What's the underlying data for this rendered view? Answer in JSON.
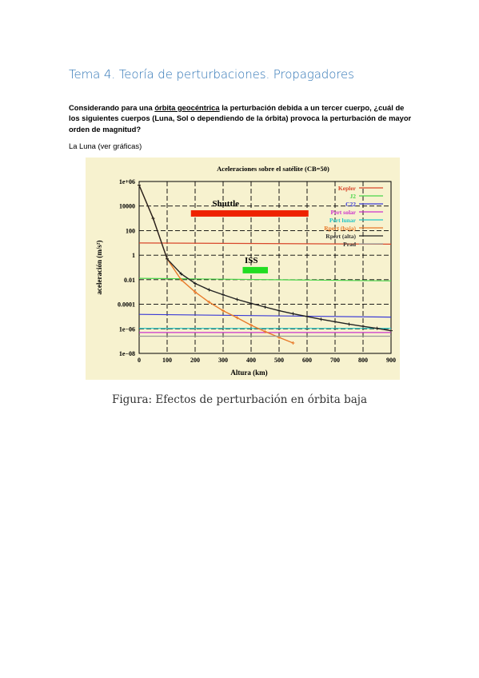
{
  "doc": {
    "title": "Tema 4. Teoría de perturbaciones. Propagadores",
    "question": {
      "before": "Considerando para una ",
      "underlined": "órbita geocéntrica",
      "after": " la perturbación debida a un tercer cuerpo, ¿cuál de los siguientes cuerpos (Luna, Sol o dependiendo de la órbita) provoca la perturbación de mayor orden de magnitud?"
    },
    "answer": "La Luna (ver gráficas)",
    "caption": "Figura: Efectos de perturbación en órbita baja"
  },
  "chart_data": {
    "type": "line",
    "title": "Aceleraciones sobre el satélite (CB=50)",
    "xlabel": "Altura (km)",
    "ylabel": "aceleración (m/s²)",
    "xlim": [
      0,
      900
    ],
    "ylim": [
      1e-08,
      1000000.0
    ],
    "yscale": "log",
    "grid": true,
    "legend_position": "top-right",
    "background": "#f7f2cf",
    "x_ticks": [
      "0",
      "100",
      "200",
      "300",
      "400",
      "500",
      "600",
      "700",
      "800",
      "900"
    ],
    "y_ticks": [
      "1e+06",
      "10000",
      "100",
      "1",
      "0.01",
      "0.0001",
      "1e−06",
      "1e−08"
    ],
    "series": [
      {
        "name": "Kepler",
        "color": "#d8472b",
        "x": [
          0,
          900
        ],
        "y": [
          9.8,
          7.9
        ]
      },
      {
        "name": "J2",
        "color": "#49d649",
        "x": [
          0,
          900
        ],
        "y": [
          0.013,
          0.008
        ]
      },
      {
        "name": "C22",
        "color": "#3a3ad6",
        "x": [
          0,
          900
        ],
        "y": [
          1.5e-05,
          9e-06
        ]
      },
      {
        "name": "Pert solar",
        "color": "#cc33cc",
        "x": [
          0,
          900
        ],
        "y": [
          5e-07,
          5e-07
        ]
      },
      {
        "name": "Pert lunar",
        "color": "#22c6c6",
        "x": [
          0,
          900
        ],
        "y": [
          1.1e-06,
          1.1e-06
        ]
      },
      {
        "name": "Rpert (baja)",
        "color": "#e87a2a",
        "x": [
          0,
          50,
          100,
          150,
          200,
          250,
          300,
          350,
          400,
          450,
          500,
          550
        ],
        "y": [
          500000,
          1000,
          0.5,
          0.01,
          0.001,
          0.00015,
          3e-05,
          8e-06,
          2e-06,
          6e-07,
          2e-07,
          7e-08
        ]
      },
      {
        "name": "Rpert (alta)",
        "color": "#222222",
        "x": [
          0,
          50,
          100,
          150,
          200,
          250,
          300,
          350,
          400,
          450,
          500,
          550,
          600,
          650,
          700,
          750,
          800,
          850,
          900
        ],
        "y": [
          500000,
          1000,
          0.5,
          0.03,
          0.005,
          0.0015,
          0.0006,
          0.00025,
          0.00012,
          6e-05,
          3e-05,
          1.7e-05,
          1e-05,
          6e-06,
          3.8e-06,
          2.4e-06,
          1.6e-06,
          1.1e-06,
          7e-07
        ]
      },
      {
        "name": "Prad",
        "color": "#999999",
        "x": [
          0,
          900
        ],
        "y": [
          2.5e-07,
          2.5e-07
        ]
      }
    ],
    "annotations": [
      {
        "label": "Shuttle",
        "color": "#ee2200",
        "x_range": [
          185,
          605
        ],
        "y": 2500
      },
      {
        "label": "ISS",
        "color": "#22dd22",
        "x_range": [
          370,
          460
        ],
        "y": 0.06
      }
    ]
  }
}
